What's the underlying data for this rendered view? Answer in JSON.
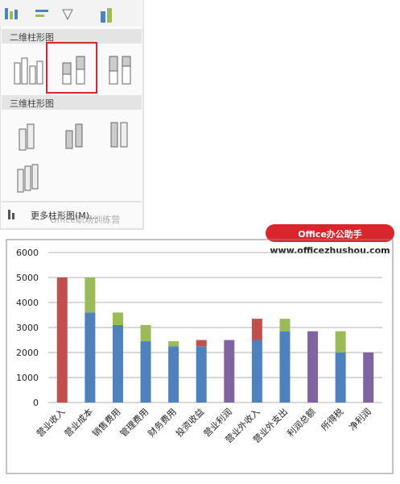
{
  "menu": {
    "section_2d": "二维柱形图",
    "section_3d": "三维柱形图",
    "more": "更多柱形图(M)...",
    "watermark": "Office职场训练营"
  },
  "brand": {
    "name": "Office办公助手",
    "url": "www.officezhushou.com"
  },
  "chart_data": {
    "type": "bar",
    "stacked": true,
    "categories": [
      "营业收入",
      "营业成本",
      "销售费用",
      "管理费用",
      "财务费用",
      "投资收益",
      "营业利润",
      "营业外收入",
      "营业外支出",
      "利润总额",
      "所得税",
      "净利润"
    ],
    "series": [
      {
        "color": "#4f81bd",
        "values": [
          null,
          3600,
          3100,
          2450,
          2250,
          2250,
          null,
          2500,
          2850,
          null,
          2000,
          null
        ]
      },
      {
        "color": "#c0504d",
        "values": [
          5000,
          null,
          null,
          null,
          null,
          250,
          null,
          850,
          null,
          null,
          null,
          null
        ]
      },
      {
        "color": "#9bbb59",
        "values": [
          null,
          1400,
          500,
          650,
          200,
          null,
          null,
          null,
          500,
          null,
          850,
          null
        ]
      },
      {
        "color": "#8064a2",
        "values": [
          null,
          null,
          null,
          null,
          null,
          null,
          2500,
          null,
          null,
          2850,
          null,
          2000
        ]
      }
    ],
    "ylim": [
      0,
      6000
    ],
    "yticks": [
      0,
      1000,
      2000,
      3000,
      4000,
      5000,
      6000
    ],
    "grid": true
  }
}
